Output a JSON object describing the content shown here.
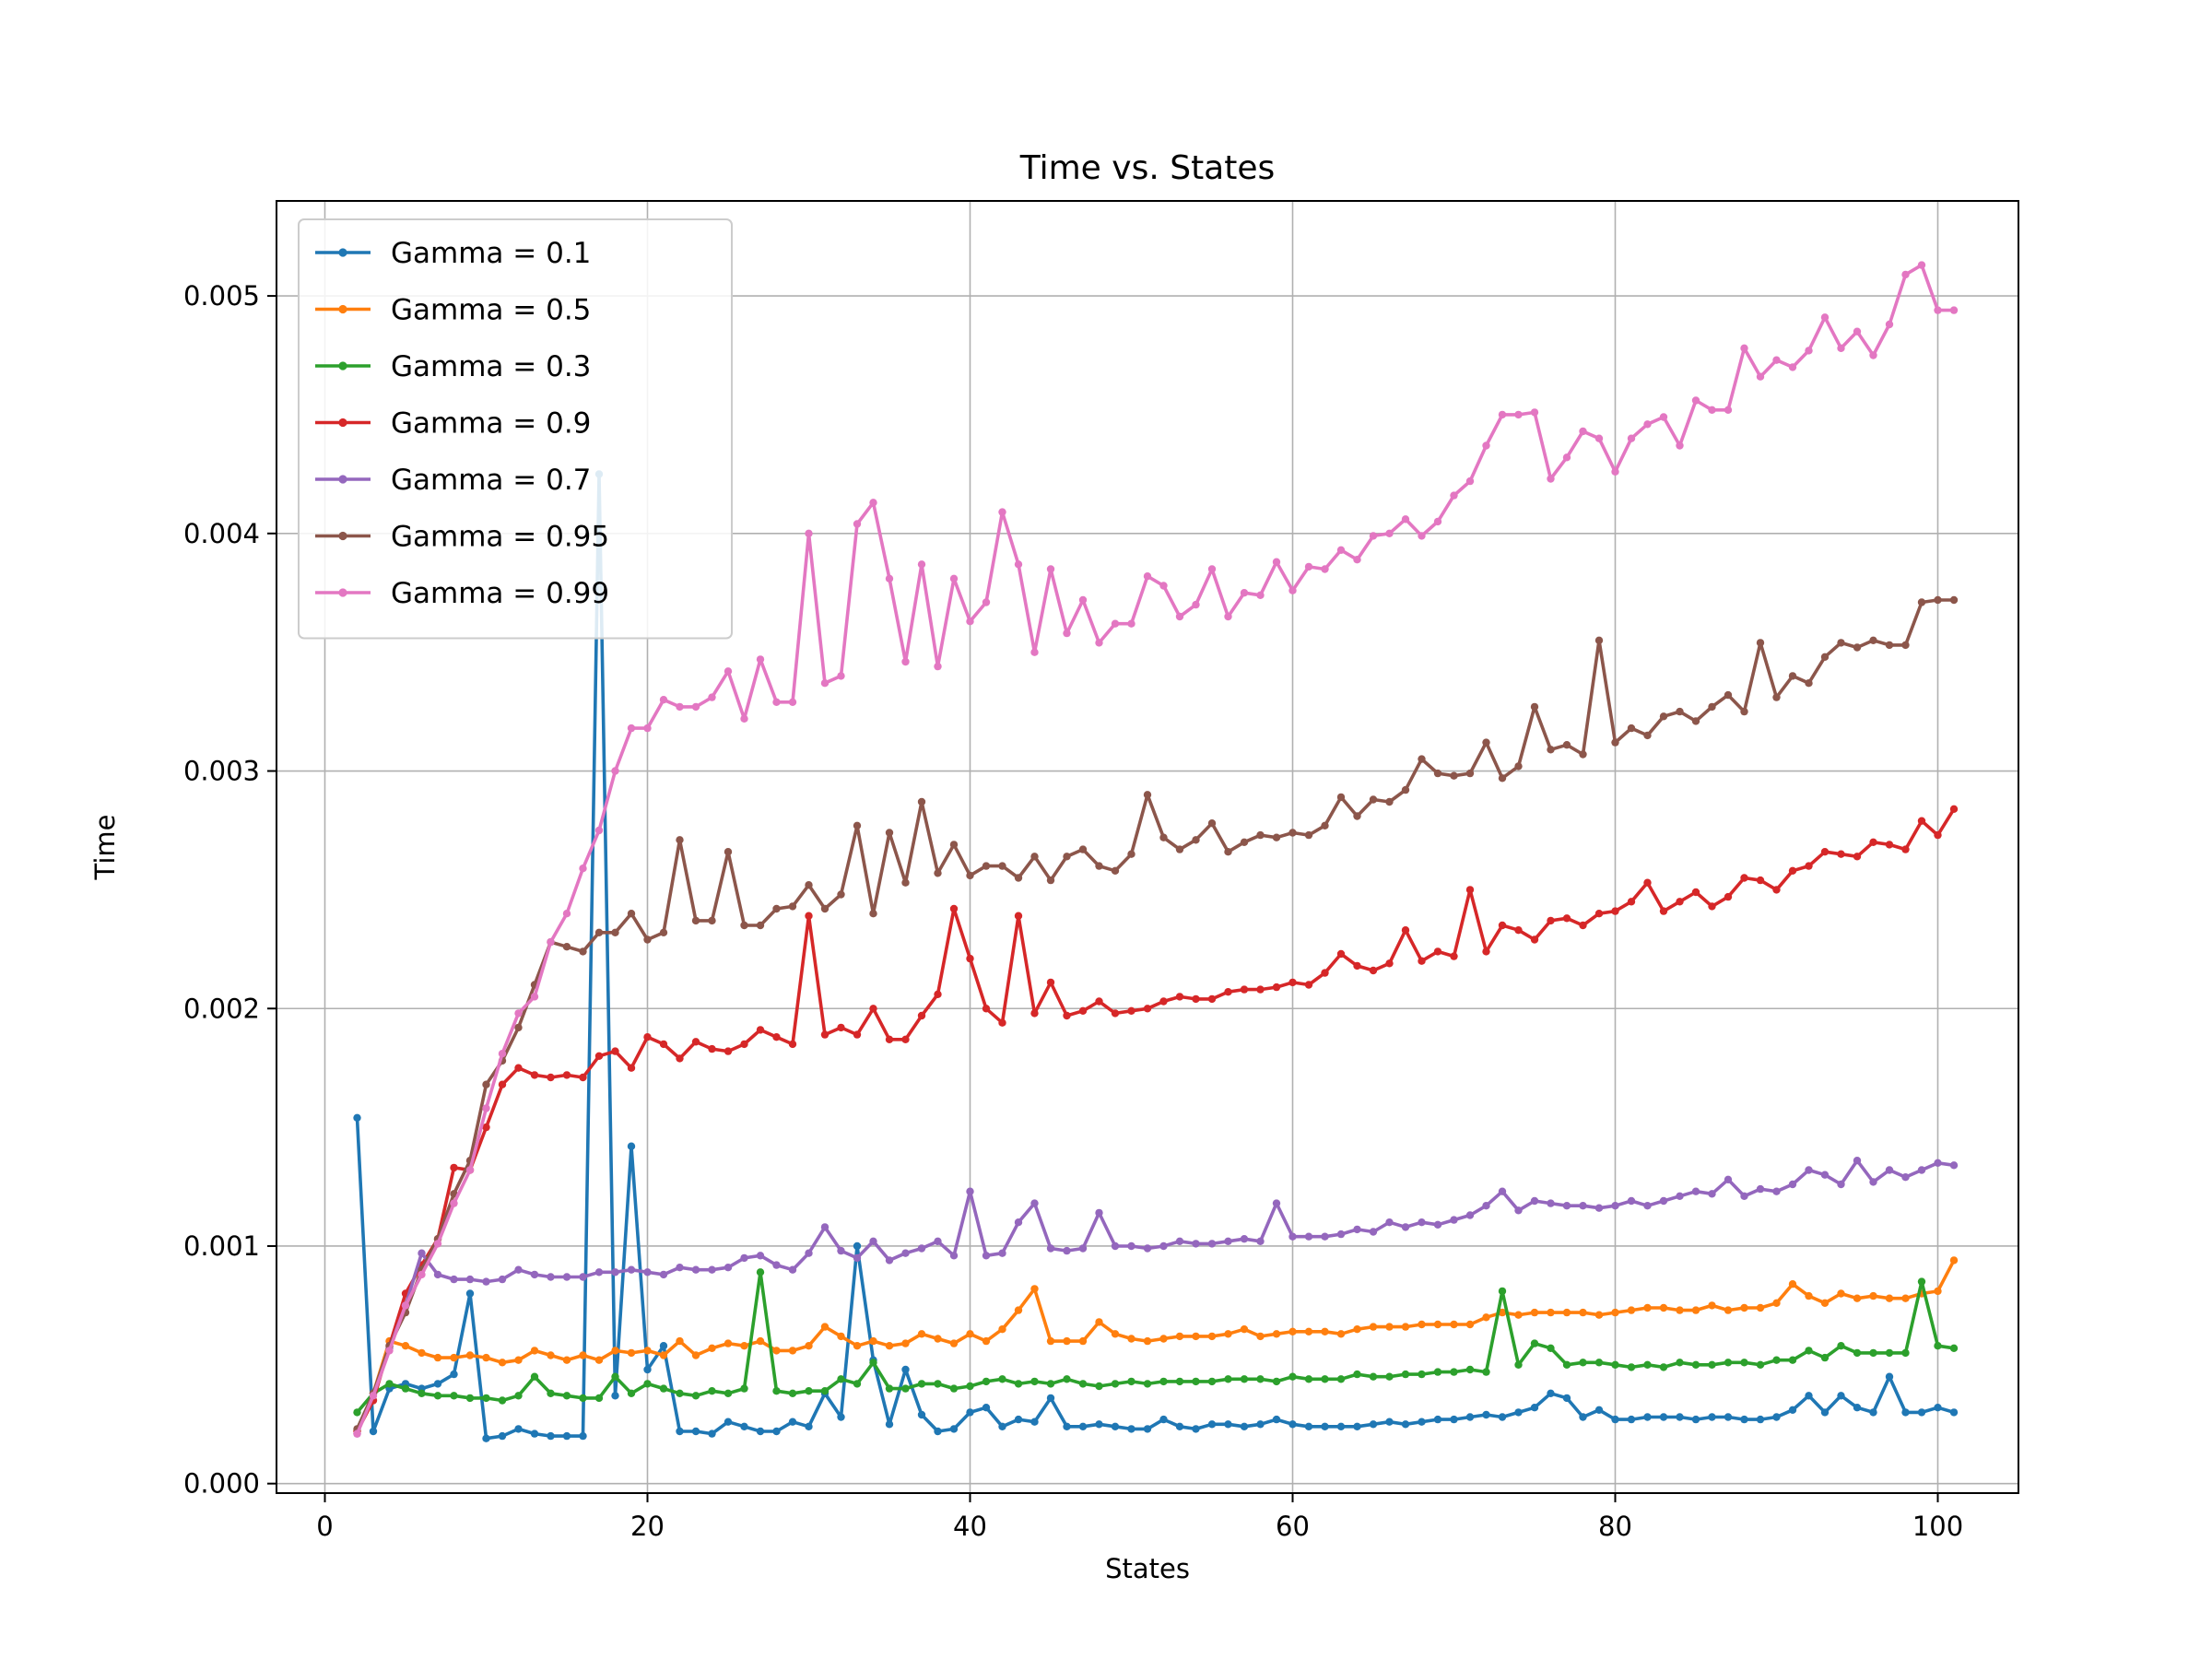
{
  "chart_data": {
    "type": "line",
    "title": "Time vs. States",
    "xlabel": "States",
    "ylabel": "Time",
    "xlim": [
      -3,
      105
    ],
    "ylim": [
      -4e-05,
      0.0054
    ],
    "xticks": [
      0,
      20,
      40,
      60,
      80,
      100
    ],
    "xtick_labels": [
      "0",
      "20",
      "40",
      "60",
      "80",
      "100"
    ],
    "yticks": [
      0.0,
      0.001,
      0.002,
      0.003,
      0.004,
      0.005
    ],
    "ytick_labels": [
      "0.000",
      "0.001",
      "0.002",
      "0.003",
      "0.004",
      "0.005"
    ],
    "grid": true,
    "legend_position": "upper-left",
    "x_start": 2,
    "series": [
      {
        "name": "Gamma = 0.1",
        "color": "#1f77b4",
        "values": [
          0.00154,
          0.00022,
          0.0004,
          0.00042,
          0.0004,
          0.00042,
          0.00046,
          0.0008,
          0.00019,
          0.0002,
          0.00023,
          0.00021,
          0.0002,
          0.0002,
          0.0002,
          0.00425,
          0.00037,
          0.00142,
          0.00048,
          0.00058,
          0.00022,
          0.00022,
          0.00021,
          0.00026,
          0.00024,
          0.00022,
          0.00022,
          0.00026,
          0.00024,
          0.00038,
          0.00028,
          0.001,
          0.00052,
          0.00025,
          0.00048,
          0.00029,
          0.00022,
          0.00023,
          0.0003,
          0.00032,
          0.00024,
          0.00027,
          0.00026,
          0.00036,
          0.00024,
          0.00024,
          0.00025,
          0.00024,
          0.00023,
          0.00023,
          0.00027,
          0.00024,
          0.00023,
          0.00025,
          0.00025,
          0.00024,
          0.00025,
          0.00027,
          0.00025,
          0.00024,
          0.00024,
          0.00024,
          0.00024,
          0.00025,
          0.00026,
          0.00025,
          0.00026,
          0.00027,
          0.00027,
          0.00028,
          0.00029,
          0.00028,
          0.0003,
          0.00032,
          0.00038,
          0.00036,
          0.00028,
          0.00031,
          0.00027,
          0.00027,
          0.00028,
          0.00028,
          0.00028,
          0.00027,
          0.00028,
          0.00028,
          0.00027,
          0.00027,
          0.00028,
          0.00031,
          0.00037,
          0.0003,
          0.00037,
          0.00032,
          0.0003,
          0.00045,
          0.0003,
          0.0003,
          0.00032,
          0.0003
        ]
      },
      {
        "name": "Gamma = 0.5",
        "color": "#ff7f0e",
        "values": [
          0.00022,
          0.00038,
          0.0006,
          0.00058,
          0.00055,
          0.00053,
          0.00053,
          0.00054,
          0.00053,
          0.00051,
          0.00052,
          0.00056,
          0.00054,
          0.00052,
          0.00054,
          0.00052,
          0.00056,
          0.00055,
          0.00056,
          0.00054,
          0.0006,
          0.00054,
          0.00057,
          0.00059,
          0.00058,
          0.0006,
          0.00056,
          0.00056,
          0.00058,
          0.00066,
          0.00062,
          0.00058,
          0.0006,
          0.00058,
          0.00059,
          0.00063,
          0.00061,
          0.00059,
          0.00063,
          0.0006,
          0.00065,
          0.00073,
          0.00082,
          0.0006,
          0.0006,
          0.0006,
          0.00068,
          0.00063,
          0.00061,
          0.0006,
          0.00061,
          0.00062,
          0.00062,
          0.00062,
          0.00063,
          0.00065,
          0.00062,
          0.00063,
          0.00064,
          0.00064,
          0.00064,
          0.00063,
          0.00065,
          0.00066,
          0.00066,
          0.00066,
          0.00067,
          0.00067,
          0.00067,
          0.00067,
          0.0007,
          0.00072,
          0.00071,
          0.00072,
          0.00072,
          0.00072,
          0.00072,
          0.00071,
          0.00072,
          0.00073,
          0.00074,
          0.00074,
          0.00073,
          0.00073,
          0.00075,
          0.00073,
          0.00074,
          0.00074,
          0.00076,
          0.00084,
          0.00079,
          0.00076,
          0.0008,
          0.00078,
          0.00079,
          0.00078,
          0.00078,
          0.0008,
          0.00081,
          0.00094
        ]
      },
      {
        "name": "Gamma = 0.3",
        "color": "#2ca02c",
        "values": [
          0.0003,
          0.00038,
          0.00042,
          0.0004,
          0.00038,
          0.00037,
          0.00037,
          0.00036,
          0.00036,
          0.00035,
          0.00037,
          0.00045,
          0.00038,
          0.00037,
          0.00036,
          0.00036,
          0.00045,
          0.00038,
          0.00042,
          0.0004,
          0.00038,
          0.00037,
          0.00039,
          0.00038,
          0.0004,
          0.00089,
          0.00039,
          0.00038,
          0.00039,
          0.00039,
          0.00044,
          0.00042,
          0.00051,
          0.0004,
          0.0004,
          0.00042,
          0.00042,
          0.0004,
          0.00041,
          0.00043,
          0.00044,
          0.00042,
          0.00043,
          0.00042,
          0.00044,
          0.00042,
          0.00041,
          0.00042,
          0.00043,
          0.00042,
          0.00043,
          0.00043,
          0.00043,
          0.00043,
          0.00044,
          0.00044,
          0.00044,
          0.00043,
          0.00045,
          0.00044,
          0.00044,
          0.00044,
          0.00046,
          0.00045,
          0.00045,
          0.00046,
          0.00046,
          0.00047,
          0.00047,
          0.00048,
          0.00047,
          0.00081,
          0.0005,
          0.00059,
          0.00057,
          0.0005,
          0.00051,
          0.00051,
          0.0005,
          0.00049,
          0.0005,
          0.00049,
          0.00051,
          0.0005,
          0.0005,
          0.00051,
          0.00051,
          0.0005,
          0.00052,
          0.00052,
          0.00056,
          0.00053,
          0.00058,
          0.00055,
          0.00055,
          0.00055,
          0.00055,
          0.00085,
          0.00058,
          0.00057
        ]
      },
      {
        "name": "Gamma = 0.9",
        "color": "#d62728",
        "values": [
          0.00022,
          0.00035,
          0.00058,
          0.0008,
          0.00092,
          0.00103,
          0.00133,
          0.00132,
          0.0015,
          0.00168,
          0.00175,
          0.00172,
          0.00171,
          0.00172,
          0.00171,
          0.0018,
          0.00182,
          0.00175,
          0.00188,
          0.00185,
          0.00179,
          0.00186,
          0.00183,
          0.00182,
          0.00185,
          0.00191,
          0.00188,
          0.00185,
          0.00239,
          0.00189,
          0.00192,
          0.00189,
          0.002,
          0.00187,
          0.00187,
          0.00197,
          0.00206,
          0.00242,
          0.00221,
          0.002,
          0.00194,
          0.00239,
          0.00198,
          0.00211,
          0.00197,
          0.00199,
          0.00203,
          0.00198,
          0.00199,
          0.002,
          0.00203,
          0.00205,
          0.00204,
          0.00204,
          0.00207,
          0.00208,
          0.00208,
          0.00209,
          0.00211,
          0.0021,
          0.00215,
          0.00223,
          0.00218,
          0.00216,
          0.00219,
          0.00233,
          0.0022,
          0.00224,
          0.00222,
          0.0025,
          0.00224,
          0.00235,
          0.00233,
          0.00229,
          0.00237,
          0.00238,
          0.00235,
          0.0024,
          0.00241,
          0.00245,
          0.00253,
          0.00241,
          0.00245,
          0.00249,
          0.00243,
          0.00247,
          0.00255,
          0.00254,
          0.0025,
          0.00258,
          0.0026,
          0.00266,
          0.00265,
          0.00264,
          0.0027,
          0.00269,
          0.00267,
          0.00279,
          0.00273,
          0.00284
        ]
      },
      {
        "name": "Gamma = 0.7",
        "color": "#9467bd",
        "values": [
          0.00021,
          0.00038,
          0.00057,
          0.00075,
          0.00097,
          0.00088,
          0.00086,
          0.00086,
          0.00085,
          0.00086,
          0.0009,
          0.00088,
          0.00087,
          0.00087,
          0.00087,
          0.00089,
          0.00089,
          0.0009,
          0.00089,
          0.00088,
          0.00091,
          0.0009,
          0.0009,
          0.00091,
          0.00095,
          0.00096,
          0.00092,
          0.0009,
          0.00097,
          0.00108,
          0.00098,
          0.00095,
          0.00102,
          0.00094,
          0.00097,
          0.00099,
          0.00102,
          0.00096,
          0.00123,
          0.00096,
          0.00097,
          0.0011,
          0.00118,
          0.00099,
          0.00098,
          0.00099,
          0.00114,
          0.001,
          0.001,
          0.00099,
          0.001,
          0.00102,
          0.00101,
          0.00101,
          0.00102,
          0.00103,
          0.00102,
          0.00118,
          0.00104,
          0.00104,
          0.00104,
          0.00105,
          0.00107,
          0.00106,
          0.0011,
          0.00108,
          0.0011,
          0.00109,
          0.00111,
          0.00113,
          0.00117,
          0.00123,
          0.00115,
          0.00119,
          0.00118,
          0.00117,
          0.00117,
          0.00116,
          0.00117,
          0.00119,
          0.00117,
          0.00119,
          0.00121,
          0.00123,
          0.00122,
          0.00128,
          0.00121,
          0.00124,
          0.00123,
          0.00126,
          0.00132,
          0.0013,
          0.00126,
          0.00136,
          0.00127,
          0.00132,
          0.00129,
          0.00132,
          0.00135,
          0.00134
        ]
      },
      {
        "name": "Gamma = 0.95",
        "color": "#8c564b",
        "values": [
          0.00023,
          0.00038,
          0.00058,
          0.00072,
          0.0009,
          0.00103,
          0.00122,
          0.00136,
          0.00168,
          0.00178,
          0.00192,
          0.0021,
          0.00228,
          0.00226,
          0.00224,
          0.00232,
          0.00232,
          0.0024,
          0.00229,
          0.00232,
          0.00271,
          0.00237,
          0.00237,
          0.00266,
          0.00235,
          0.00235,
          0.00242,
          0.00243,
          0.00252,
          0.00242,
          0.00248,
          0.00277,
          0.0024,
          0.00274,
          0.00253,
          0.00287,
          0.00257,
          0.00269,
          0.00256,
          0.0026,
          0.0026,
          0.00255,
          0.00264,
          0.00254,
          0.00264,
          0.00267,
          0.0026,
          0.00258,
          0.00265,
          0.0029,
          0.00272,
          0.00267,
          0.00271,
          0.00278,
          0.00266,
          0.0027,
          0.00273,
          0.00272,
          0.00274,
          0.00273,
          0.00277,
          0.00289,
          0.00281,
          0.00288,
          0.00287,
          0.00292,
          0.00305,
          0.00299,
          0.00298,
          0.00299,
          0.00312,
          0.00297,
          0.00302,
          0.00327,
          0.00309,
          0.00311,
          0.00307,
          0.00355,
          0.00312,
          0.00318,
          0.00315,
          0.00323,
          0.00325,
          0.00321,
          0.00327,
          0.00332,
          0.00325,
          0.00354,
          0.00331,
          0.0034,
          0.00337,
          0.00348,
          0.00354,
          0.00352,
          0.00355,
          0.00353,
          0.00353,
          0.00371,
          0.00372,
          0.00372
        ]
      },
      {
        "name": "Gamma = 0.99",
        "color": "#e377c2",
        "values": [
          0.00021,
          0.00037,
          0.00056,
          0.00075,
          0.00088,
          0.00101,
          0.00118,
          0.00132,
          0.00158,
          0.00181,
          0.00198,
          0.00205,
          0.00228,
          0.0024,
          0.00259,
          0.00275,
          0.003,
          0.00318,
          0.00318,
          0.0033,
          0.00327,
          0.00327,
          0.00331,
          0.00342,
          0.00322,
          0.00347,
          0.00329,
          0.00329,
          0.004,
          0.00337,
          0.0034,
          0.00404,
          0.00413,
          0.00381,
          0.00346,
          0.00387,
          0.00344,
          0.00381,
          0.00363,
          0.00371,
          0.00409,
          0.00387,
          0.0035,
          0.00385,
          0.00358,
          0.00372,
          0.00354,
          0.00362,
          0.00362,
          0.00382,
          0.00378,
          0.00365,
          0.0037,
          0.00385,
          0.00365,
          0.00375,
          0.00374,
          0.00388,
          0.00376,
          0.00386,
          0.00385,
          0.00393,
          0.00389,
          0.00399,
          0.004,
          0.00406,
          0.00399,
          0.00405,
          0.00416,
          0.00422,
          0.00437,
          0.0045,
          0.0045,
          0.00451,
          0.00423,
          0.00432,
          0.00443,
          0.0044,
          0.00426,
          0.0044,
          0.00446,
          0.00449,
          0.00437,
          0.00456,
          0.00452,
          0.00452,
          0.00478,
          0.00466,
          0.00473,
          0.0047,
          0.00477,
          0.00491,
          0.00478,
          0.00485,
          0.00475,
          0.00488,
          0.00509,
          0.00513,
          0.00494,
          0.00494
        ]
      }
    ]
  }
}
